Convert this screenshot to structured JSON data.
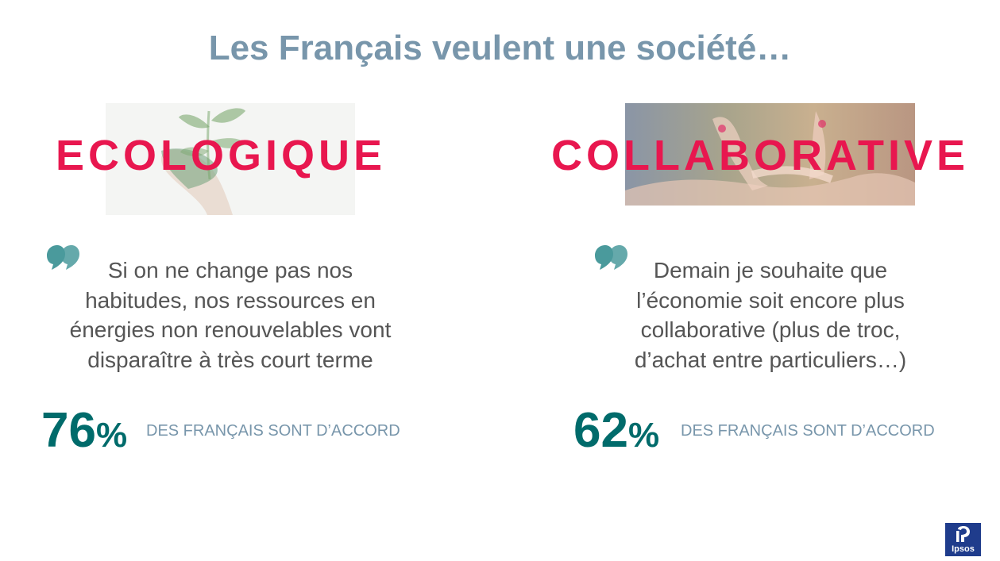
{
  "slide": {
    "title": "Les Français veulent une société…"
  },
  "columns": [
    {
      "keyword": "ECOLOGIQUE",
      "quote_lines": [
        "Si on ne change pas nos",
        "habitudes, nos ressources en",
        "énergies non renouvelables vont",
        "disparaître à très court terme"
      ],
      "stat_value": "76",
      "stat_unit": "%",
      "stat_caption": "DES FRANÇAIS SONT D’ACCORD"
    },
    {
      "keyword": "COLLABORATIVE",
      "quote_lines": [
        "Demain je souhaite que",
        "l’économie soit encore plus",
        "collaborative (plus de troc,",
        "d’achat entre particuliers…)"
      ],
      "stat_value": "62",
      "stat_unit": "%",
      "stat_caption": "DES FRANÇAIS SONT D’ACCORD"
    }
  ],
  "logo": {
    "text": "Ipsos"
  },
  "colors": {
    "title": "#7896AB",
    "keyword": "#E8174F",
    "stat": "#006B6B",
    "quote_icon": "#4A9A9C",
    "caption": "#7896AB",
    "logo_bg": "#1f3c8c"
  },
  "icons": {
    "quote": "quote-mark-icon",
    "logo": "ipsos-logo"
  }
}
